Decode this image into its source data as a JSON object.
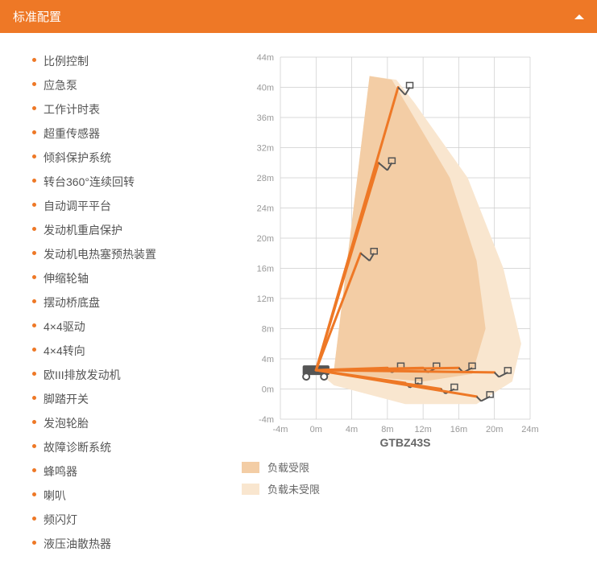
{
  "header": {
    "title": "标准配置"
  },
  "features": [
    "比例控制",
    "应急泵",
    "工作计时表",
    "超重传感器",
    "倾斜保护系统",
    "转台360°连续回转",
    "自动调平平台",
    "发动机重启保护",
    "发动机电热塞预热装置",
    "伸缩轮轴",
    "摆动桥底盘",
    "4×4驱动",
    "4×4转向",
    "欧III排放发动机",
    "脚踏开关",
    "发泡轮胎",
    "故障诊断系统",
    "蜂鸣器",
    "喇叭",
    "频闪灯",
    "液压油散热器"
  ],
  "chart": {
    "model": "GTBZ43S",
    "x_ticks": [
      -4,
      0,
      4,
      8,
      12,
      16,
      20,
      24
    ],
    "y_ticks": [
      -4,
      0,
      4,
      8,
      12,
      16,
      20,
      24,
      28,
      32,
      36,
      40,
      44
    ],
    "unit": "m",
    "grid_color": "#cccccc",
    "envelope_restricted_color": "#f3cda5",
    "envelope_unrestricted_color": "#f9e6cf",
    "boom_color": "#ee7826",
    "machine_color": "#555555",
    "legend": [
      {
        "label": "负载受限",
        "color": "#f3cda5"
      },
      {
        "label": "负载未受限",
        "color": "#f9e6cf"
      }
    ],
    "envelope_restricted": [
      [
        0,
        2.5
      ],
      [
        2,
        2.5
      ],
      [
        6,
        41.5
      ],
      [
        8.5,
        41
      ],
      [
        10,
        38
      ],
      [
        15,
        28
      ],
      [
        18,
        17
      ],
      [
        19,
        8
      ],
      [
        18,
        4
      ],
      [
        17.5,
        2
      ],
      [
        12,
        1
      ],
      [
        2,
        2
      ]
    ],
    "envelope_unrestricted": [
      [
        0,
        2.5
      ],
      [
        2,
        2.5
      ],
      [
        6,
        41.5
      ],
      [
        9,
        41
      ],
      [
        11,
        38
      ],
      [
        17,
        28
      ],
      [
        21,
        16
      ],
      [
        23,
        6
      ],
      [
        22,
        1
      ],
      [
        18,
        -2
      ],
      [
        10,
        -2
      ],
      [
        2,
        0.5
      ]
    ],
    "booms": [
      [
        [
          0,
          2.5
        ],
        [
          5,
          18
        ],
        [
          6,
          17
        ],
        [
          6.5,
          18
        ]
      ],
      [
        [
          0,
          2.5
        ],
        [
          7,
          30
        ],
        [
          8,
          29
        ],
        [
          8.5,
          30
        ]
      ],
      [
        [
          0,
          2.5
        ],
        [
          9.2,
          40
        ],
        [
          10,
          39
        ],
        [
          10.5,
          40
        ]
      ],
      [
        [
          0,
          2.5
        ],
        [
          8,
          2.8
        ],
        [
          8.5,
          2.2
        ],
        [
          9.5,
          2.8
        ]
      ],
      [
        [
          0,
          2.5
        ],
        [
          12,
          2.8
        ],
        [
          12.5,
          2.2
        ],
        [
          13.5,
          2.8
        ]
      ],
      [
        [
          0,
          2.5
        ],
        [
          16,
          2.8
        ],
        [
          16.5,
          2.2
        ],
        [
          17.5,
          2.8
        ]
      ],
      [
        [
          0,
          2.5
        ],
        [
          20,
          2.2
        ],
        [
          20.5,
          1.6
        ],
        [
          21.5,
          2.2
        ]
      ],
      [
        [
          0,
          2.5
        ],
        [
          10,
          0.8
        ],
        [
          10.5,
          0.2
        ],
        [
          11.5,
          0.8
        ]
      ],
      [
        [
          0,
          2.5
        ],
        [
          14,
          0
        ],
        [
          14.5,
          -0.6
        ],
        [
          15.5,
          0
        ]
      ],
      [
        [
          0,
          2.5
        ],
        [
          18,
          -1
        ],
        [
          18.5,
          -1.6
        ],
        [
          19.5,
          -1
        ]
      ]
    ]
  }
}
